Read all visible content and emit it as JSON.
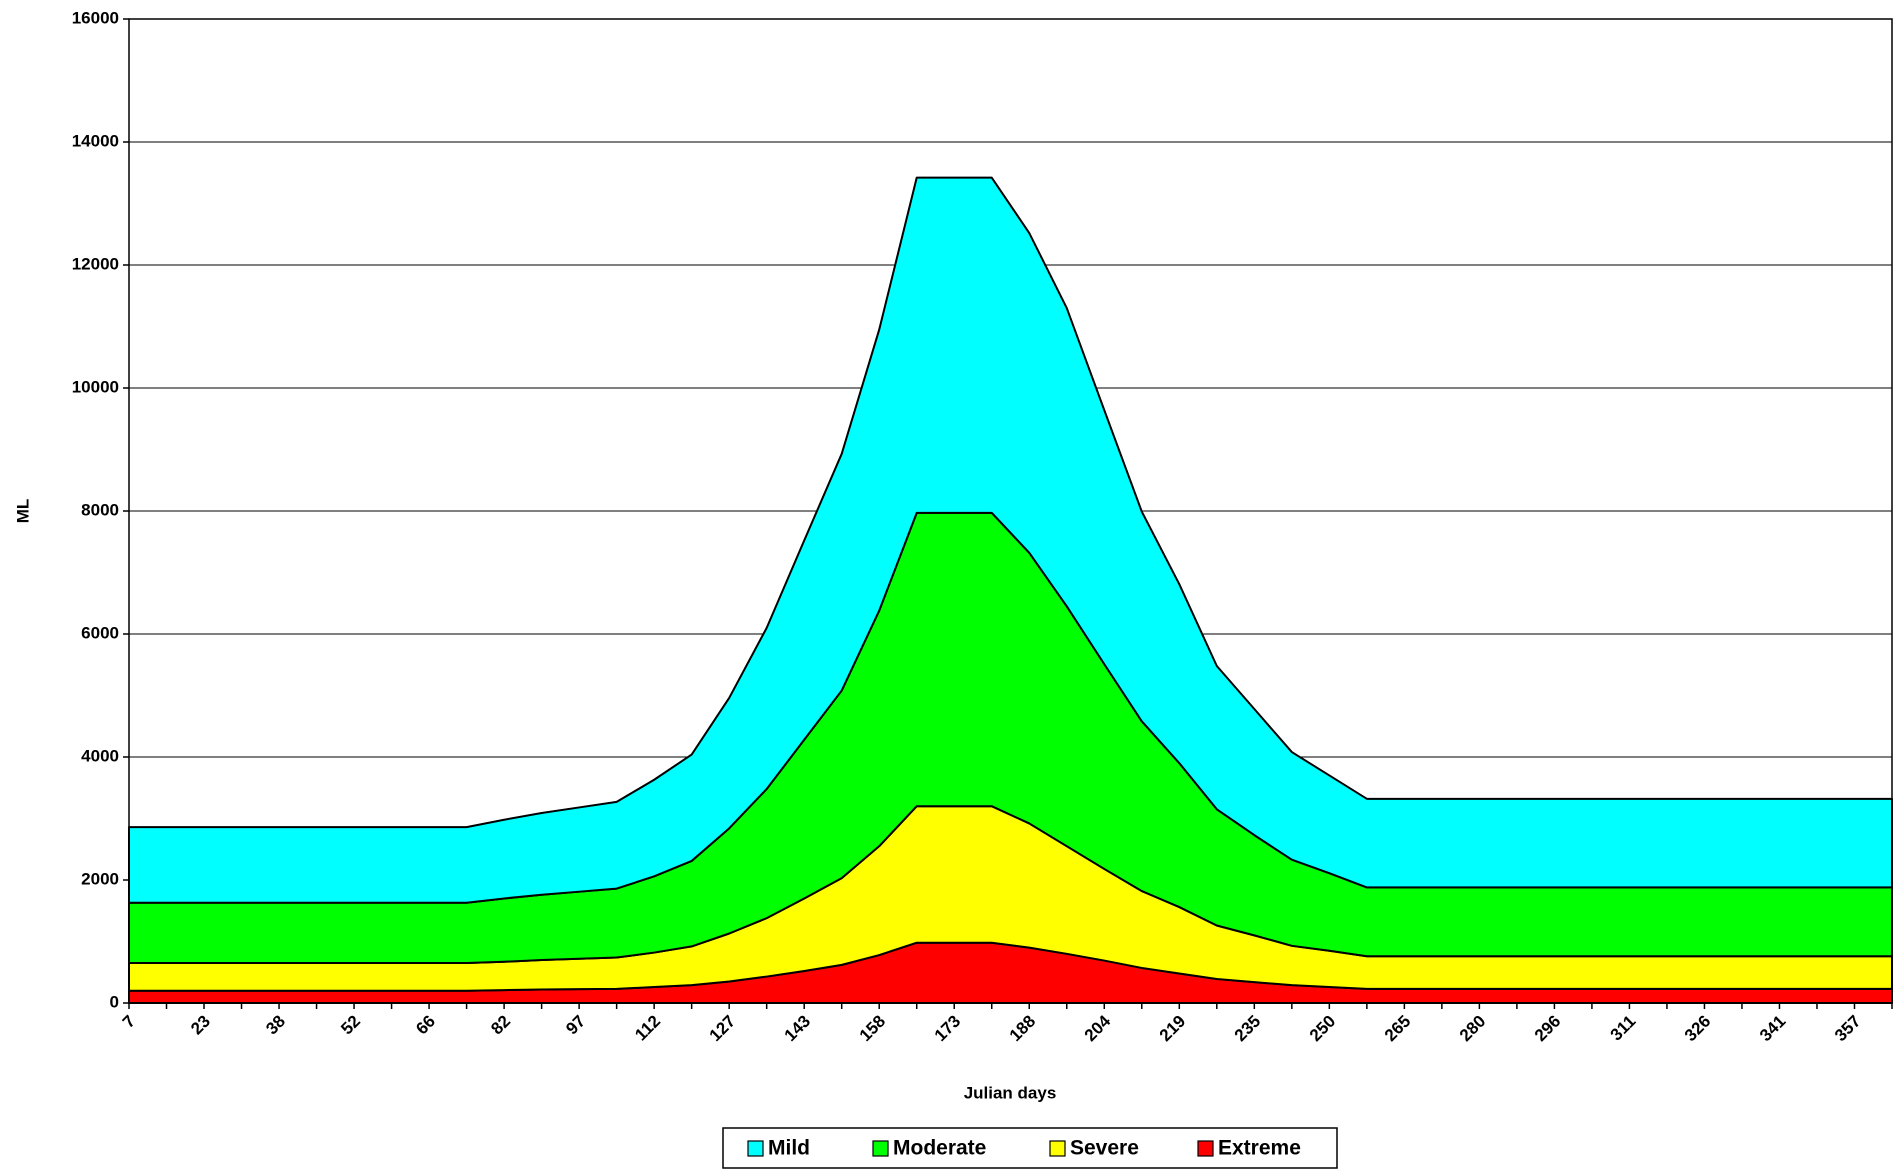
{
  "chart_data": {
    "type": "stacked_area",
    "y_label": "ML",
    "x_label": "Julian days",
    "categories": [
      "7",
      null,
      "23",
      null,
      "38",
      null,
      "52",
      null,
      "66",
      null,
      "82",
      null,
      "97",
      null,
      "112",
      null,
      "127",
      null,
      "143",
      null,
      "158",
      null,
      "173",
      null,
      "188",
      null,
      "204",
      null,
      "219",
      null,
      "235",
      null,
      "250",
      null,
      "265",
      null,
      "280",
      null,
      "296",
      null,
      "311",
      null,
      "326",
      null,
      "341",
      null,
      "357",
      null
    ],
    "series": [
      {
        "name": "Mild",
        "color": "#00ffff",
        "values": [
          1230,
          1230,
          1230,
          1230,
          1230,
          1230,
          1230,
          1230,
          1230,
          1230,
          1280,
          1330,
          1370,
          1410,
          1570,
          1730,
          2120,
          2620,
          3240,
          3850,
          4570,
          5450,
          5450,
          5450,
          5200,
          4850,
          4130,
          3410,
          2910,
          2330,
          2050,
          1750,
          1590,
          1440,
          1440,
          1440,
          1440,
          1440,
          1440,
          1440,
          1440,
          1440,
          1440,
          1440,
          1440,
          1440,
          1440,
          1440
        ]
      },
      {
        "name": "Moderate",
        "color": "#00ff00",
        "values": [
          980,
          980,
          980,
          980,
          980,
          980,
          980,
          980,
          980,
          980,
          1030,
          1060,
          1090,
          1120,
          1240,
          1390,
          1710,
          2100,
          2580,
          3050,
          3830,
          4770,
          4770,
          4770,
          4400,
          3900,
          3330,
          2760,
          2340,
          1890,
          1630,
          1400,
          1260,
          1120,
          1120,
          1120,
          1120,
          1120,
          1120,
          1120,
          1120,
          1120,
          1120,
          1120,
          1120,
          1120,
          1120,
          1120
        ]
      },
      {
        "name": "Severe",
        "color": "#ffff00",
        "values": [
          450,
          450,
          450,
          450,
          450,
          450,
          450,
          450,
          450,
          450,
          460,
          480,
          495,
          510,
          560,
          630,
          780,
          950,
          1180,
          1410,
          1770,
          2220,
          2220,
          2220,
          2020,
          1750,
          1490,
          1250,
          1080,
          870,
          760,
          640,
          590,
          530,
          530,
          530,
          530,
          530,
          530,
          530,
          530,
          530,
          530,
          530,
          530,
          530,
          530,
          530
        ]
      },
      {
        "name": "Extreme",
        "color": "#ff0000",
        "values": [
          200,
          200,
          200,
          200,
          200,
          200,
          200,
          200,
          200,
          200,
          210,
          220,
          225,
          230,
          260,
          290,
          350,
          430,
          520,
          620,
          780,
          980,
          980,
          980,
          900,
          800,
          690,
          570,
          480,
          390,
          340,
          290,
          260,
          230,
          230,
          230,
          230,
          230,
          230,
          230,
          230,
          230,
          230,
          230,
          230,
          230,
          230,
          230
        ]
      }
    ],
    "ylim": [
      0,
      16000
    ],
    "yticks": [
      0,
      2000,
      4000,
      6000,
      8000,
      10000,
      12000,
      14000,
      16000
    ],
    "grid": true,
    "legend": "bottom"
  }
}
